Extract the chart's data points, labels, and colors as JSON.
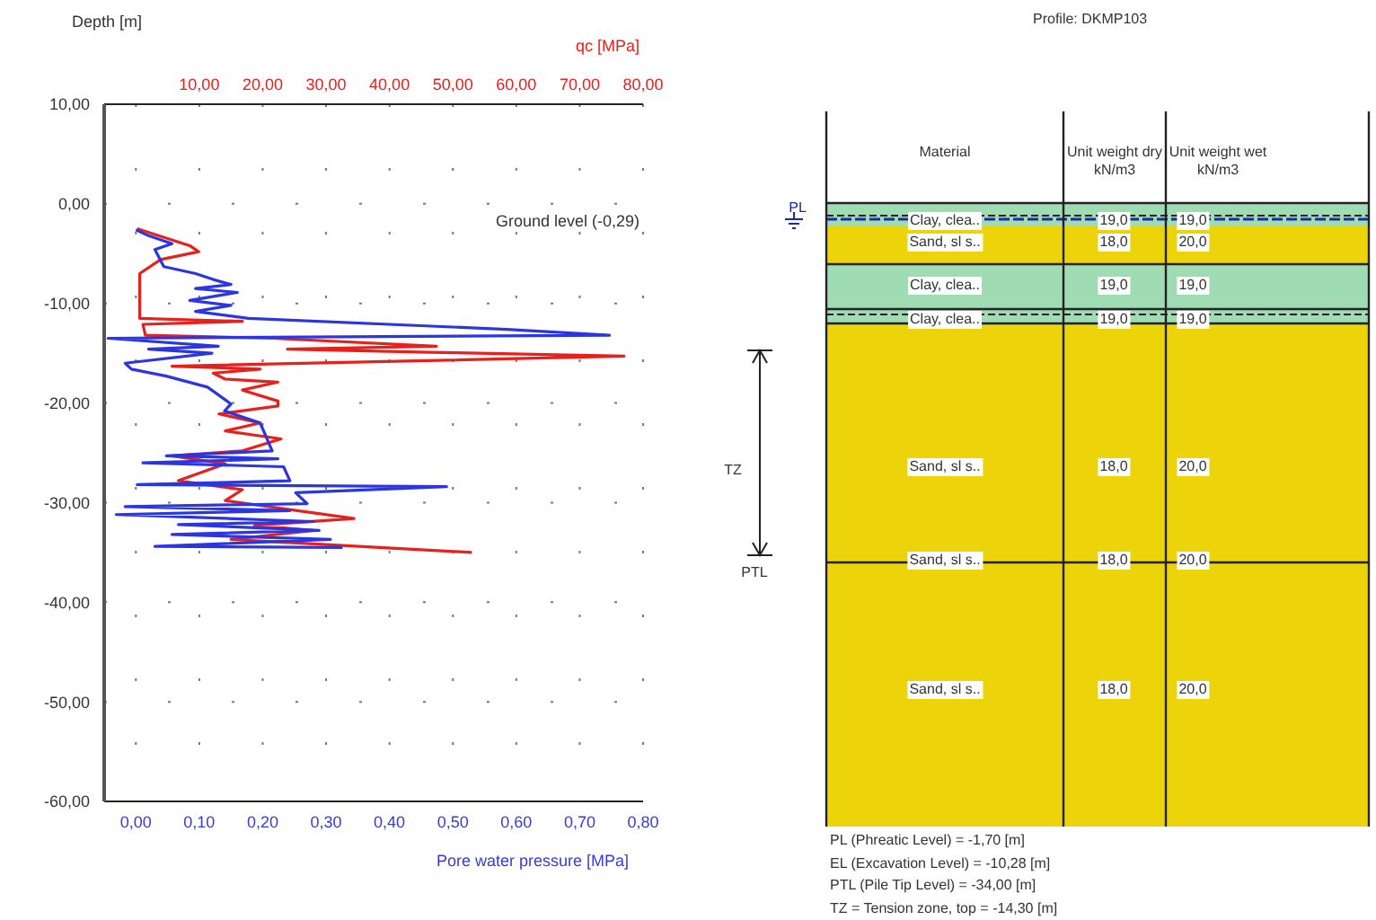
{
  "chart_data": [
    {
      "type": "line",
      "xlabel": "Pore water pressure [MPa]",
      "x2label": "qc [MPa]",
      "ylabel": "Depth [m]",
      "annotations": [
        "Ground level (-0,29)"
      ],
      "xlim": [
        -0.05,
        0.8
      ],
      "xticks": [
        {
          "value": 0,
          "label": "0,00"
        },
        {
          "value": 0.1,
          "label": "0,10"
        },
        {
          "value": 0.2,
          "label": "0,20"
        },
        {
          "value": 0.3,
          "label": "0,30"
        },
        {
          "value": 0.4,
          "label": "0,40"
        },
        {
          "value": 0.5,
          "label": "0,50"
        },
        {
          "value": 0.6,
          "label": "0,60"
        },
        {
          "value": 0.7,
          "label": "0,70"
        },
        {
          "value": 0.8,
          "label": "0,80"
        }
      ],
      "x2lim": [
        -5,
        80
      ],
      "x2ticks": [
        {
          "value": 10,
          "label": "10,00"
        },
        {
          "value": 20,
          "label": "20,00"
        },
        {
          "value": 30,
          "label": "30,00"
        },
        {
          "value": 40,
          "label": "40,00"
        },
        {
          "value": 50,
          "label": "50,00"
        },
        {
          "value": 60,
          "label": "60,00"
        },
        {
          "value": 70,
          "label": "70,00"
        },
        {
          "value": 80,
          "label": "80,00"
        }
      ],
      "ylim": [
        -60,
        10
      ],
      "yticks": [
        {
          "value": 10,
          "label": "10,00"
        },
        {
          "value": 0,
          "label": "0,00"
        },
        {
          "value": -10,
          "label": "-10,00"
        },
        {
          "value": -20,
          "label": "-20,00"
        },
        {
          "value": -30,
          "label": "-30,00"
        },
        {
          "value": -40,
          "label": "-40,00"
        },
        {
          "value": -50,
          "label": "-50,00"
        },
        {
          "value": -60,
          "label": "-60,00"
        }
      ],
      "grid": "dots",
      "marker": "none",
      "legend": false,
      "series": [
        {
          "color": "#e8201c",
          "axis": "x2",
          "x": [
            0.2,
            8.5,
            9.9,
            3.9,
            0.6,
            0.6,
            16.8,
            1.1,
            1.5,
            21.5,
            47.4,
            23.9,
            46.4,
            77,
            5.7,
            19.6,
            12.2,
            14.1,
            22.4,
            16.8,
            22.4,
            22.4,
            13.1,
            19.6,
            14.1,
            22.9,
            16.8,
            5.7,
            14.1,
            6.7,
            16.8,
            14.1,
            34.4,
            18.7,
            28,
            15,
            53
          ],
          "values": [
            -2.5,
            -4.2,
            -4.8,
            -5.6,
            -7,
            -11.5,
            -11.8,
            -12.1,
            -13.2,
            -13.5,
            -14.3,
            -14.6,
            -14.9,
            -15.3,
            -16.3,
            -16.6,
            -17,
            -17.6,
            -17.9,
            -18.7,
            -19.8,
            -20.3,
            -21.1,
            -22,
            -22.8,
            -23.6,
            -24.8,
            -25.3,
            -26.1,
            -27.8,
            -28.7,
            -29.8,
            -31.6,
            -32.3,
            -32.8,
            -33.7,
            -35
          ]
        },
        {
          "color": "#2b35e0",
          "x": [
            0,
            0.02,
            0.057,
            0.03,
            0.044,
            0.094,
            0.122,
            0.15,
            0.094,
            0.16,
            0.085,
            0.15,
            0.094,
            0.178,
            0.585,
            0.747,
            -0.044,
            0.13,
            0.02,
            0.12,
            -0.017,
            -0.007,
            0.048,
            0.113,
            0.15,
            0.14,
            0.196,
            0.215,
            0.048,
            0.224,
            0.011,
            0.233,
            0.243,
            0.002,
            0.49,
            0.252,
            0.26,
            0.27,
            -0.017,
            0.243,
            -0.031,
            0.28,
            0.067,
            0.289,
            0.057,
            0.307,
            0.03,
            0.326
          ],
          "values": [
            -2.6,
            -3.2,
            -4,
            -4.6,
            -6.3,
            -7,
            -7.6,
            -8.1,
            -8.5,
            -8.9,
            -9.7,
            -10.2,
            -10.8,
            -11.5,
            -12.6,
            -13.2,
            -13.5,
            -14.3,
            -14.6,
            -15,
            -16,
            -16.6,
            -17.3,
            -18.4,
            -20.1,
            -20.8,
            -22,
            -24.8,
            -25.3,
            -25.6,
            -26,
            -26.4,
            -27.8,
            -28.2,
            -28.4,
            -29,
            -29.5,
            -30.1,
            -30.4,
            -30.8,
            -31.2,
            -31.9,
            -32.2,
            -32.8,
            -33.2,
            -33.7,
            -34.4,
            -34.5
          ]
        }
      ]
    },
    {
      "type": "other",
      "title": "Profile: DKMP103",
      "annotations": [
        "Material",
        "Unit weight dry kN/m3",
        "Unit weight wet kN/m3",
        "Clay, clea..",
        "19,0",
        "19,0",
        "Sand, sl s..",
        "18,0",
        "20,0",
        "Clay, clea..",
        "19,0",
        "19,0",
        "Clay, clea..",
        "19,0",
        "19,0",
        "Sand, sl s..",
        "18,0",
        "20,0",
        "Sand, sl s..",
        "18,0",
        "20,0",
        "Sand, sl s..",
        "18,0",
        "20,0",
        "PL",
        "TZ",
        "PTL",
        "PL (Phreatic Level) = -1,70 [m]",
        "EL (Excavation Level) = -10,28 [m]",
        "PTL (Pile Tip Level) = -34,00 [m]",
        "TZ = Tension zone, top = -14,30 [m]"
      ]
    }
  ]
}
